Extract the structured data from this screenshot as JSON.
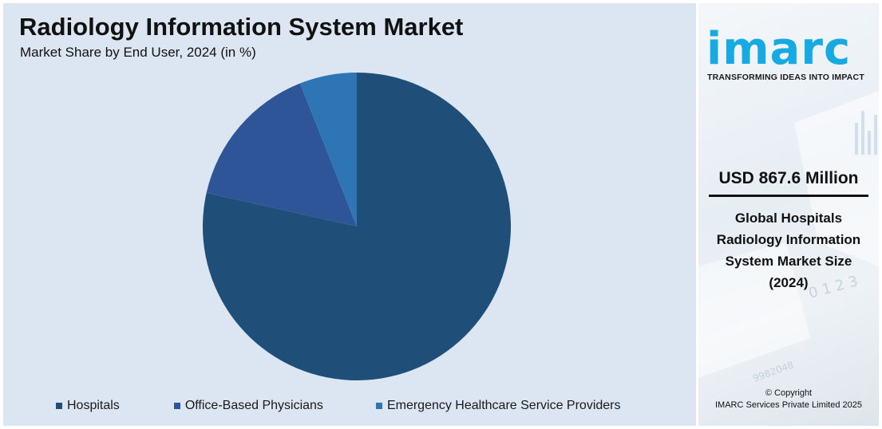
{
  "header": {
    "title": "Radiology Information System Market",
    "subtitle": "Market Share by End User, 2024 (in %)"
  },
  "chart_data": {
    "type": "pie",
    "categories": [
      "Hospitals",
      "Office-Based Physicians",
      "Emergency Healthcare Service Providers"
    ],
    "values": [
      78.5,
      15.5,
      6.0
    ],
    "colors": [
      "#1f4e79",
      "#2e5597",
      "#2e75b6"
    ],
    "legend_placement": "bottom"
  },
  "sidebar": {
    "logo": "imarc",
    "tagline": "TRANSFORMING IDEAS INTO IMPACT",
    "market_size": "USD 867.6 Million",
    "description": "Global Hospitals Radiology Information System Market Size (2024)",
    "copyright_line1": "© Copyright",
    "copyright_line2": "IMARC Services Private Limited 2025"
  }
}
